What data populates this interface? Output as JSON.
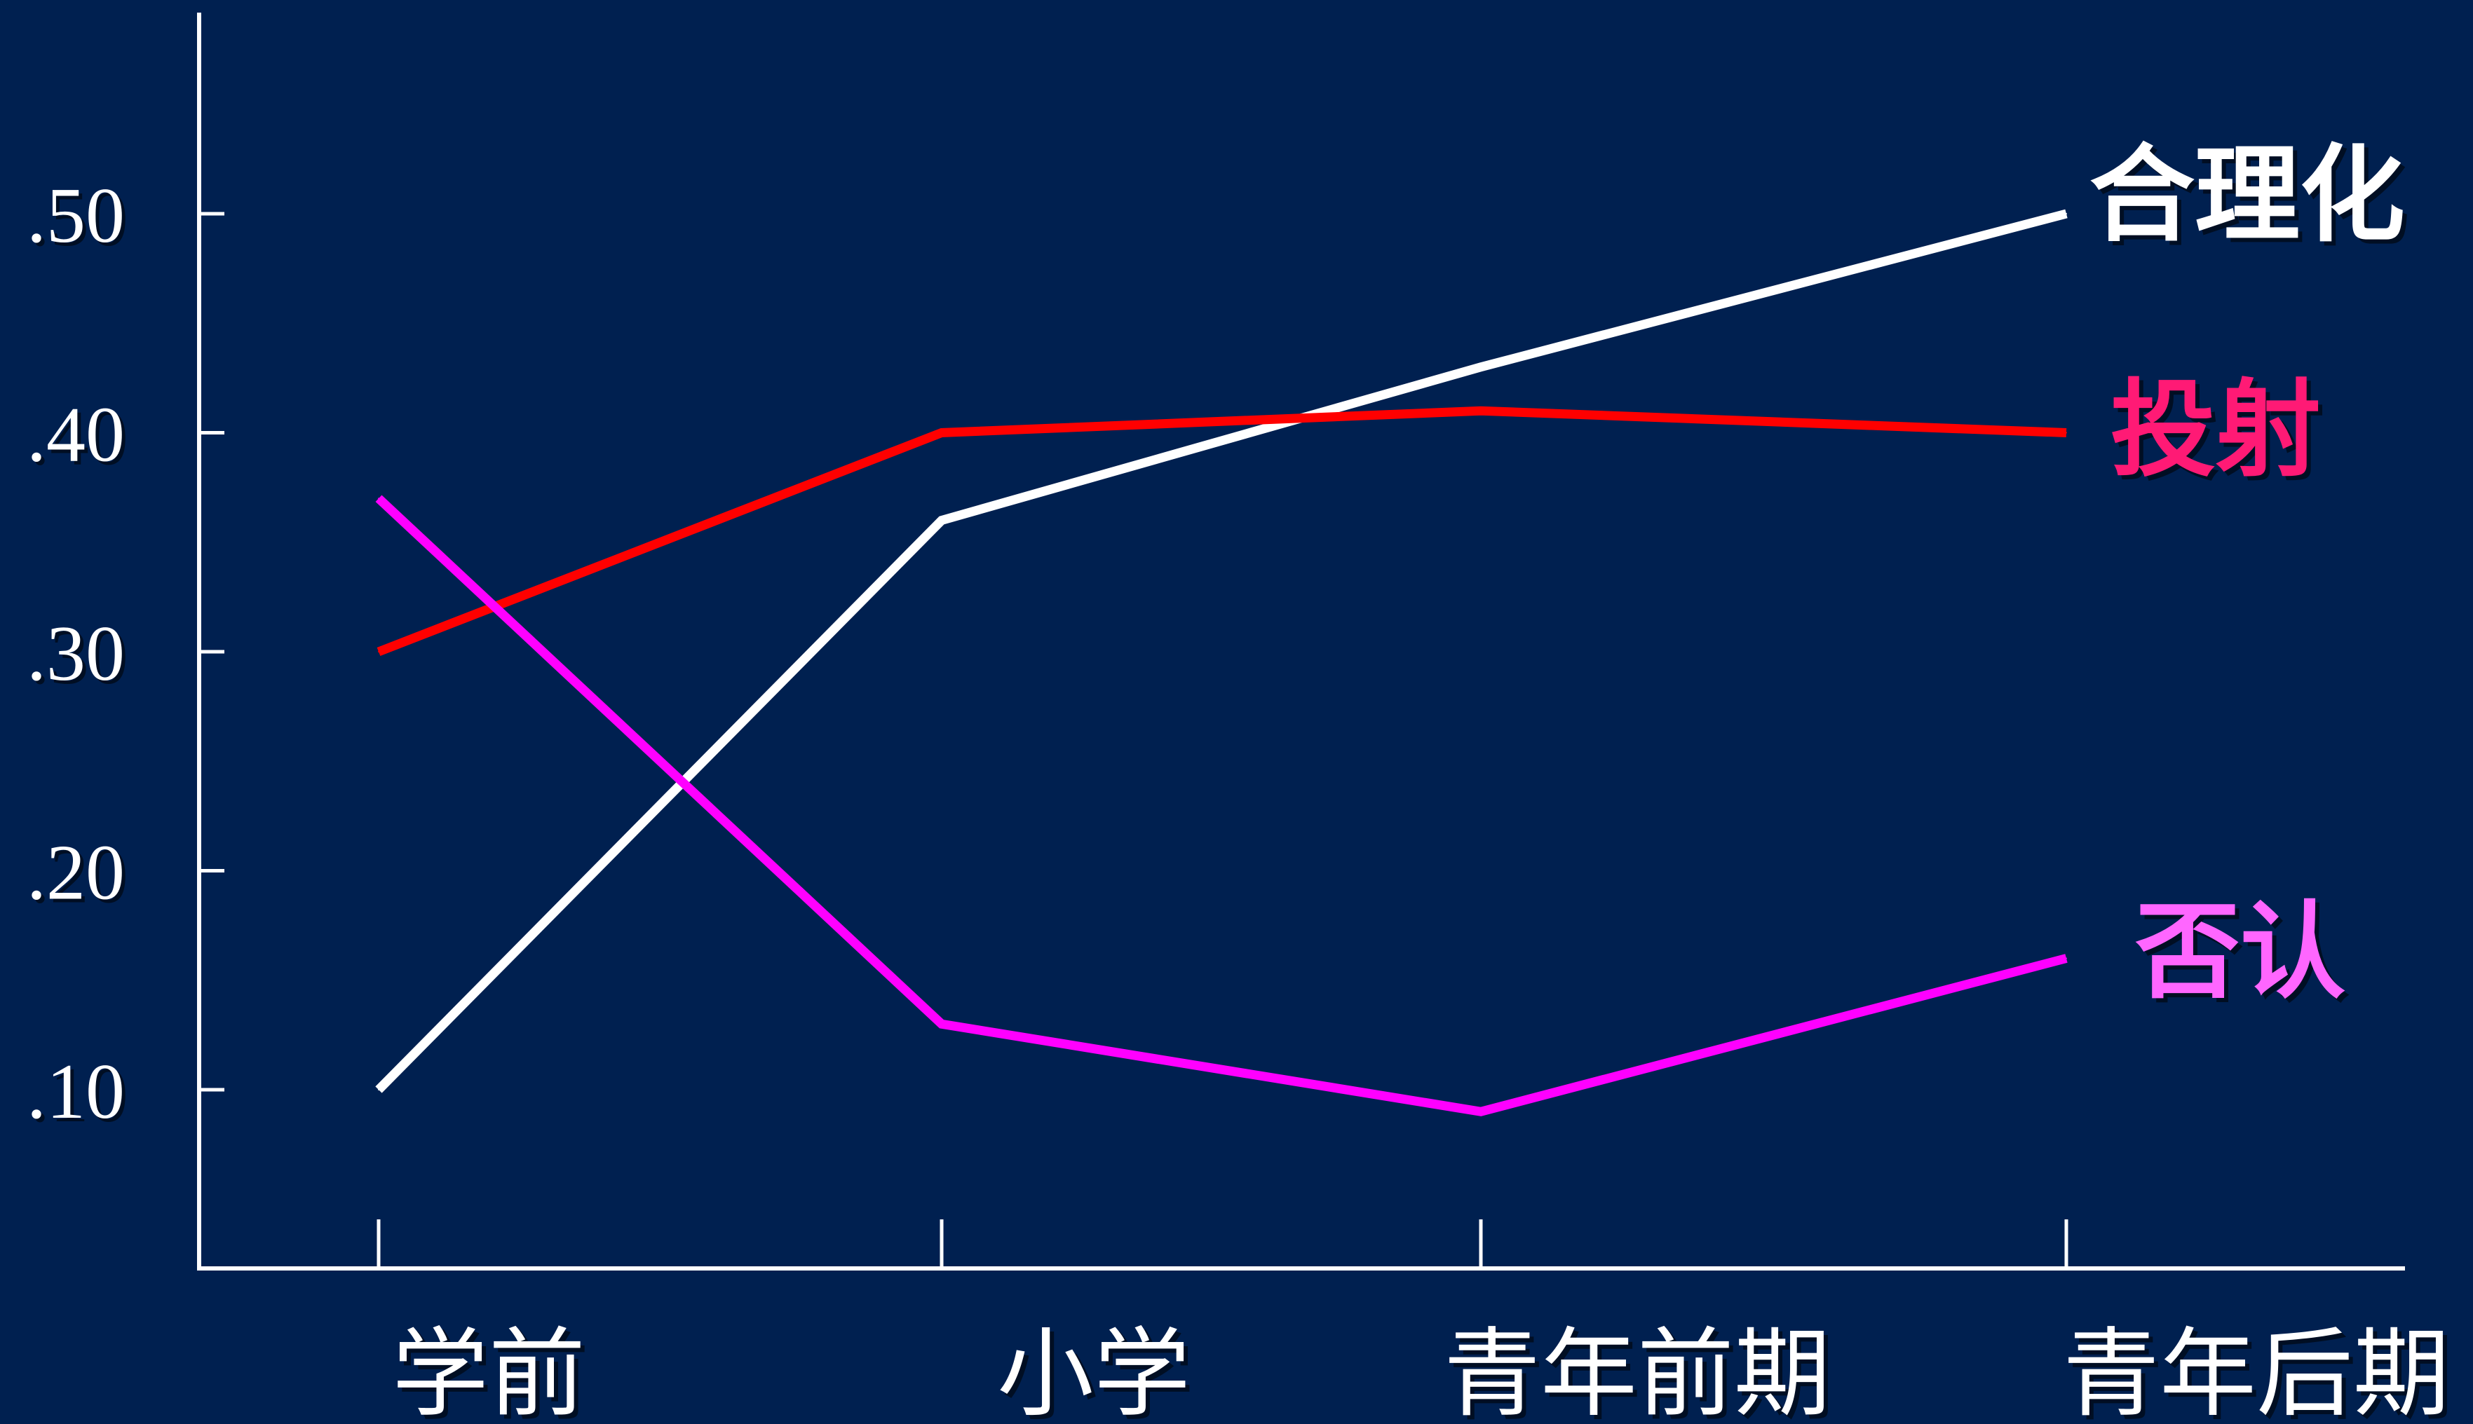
{
  "chart_data": {
    "type": "line",
    "title": "",
    "xlabel": "",
    "ylabel": "",
    "categories": [
      "学前",
      "小学",
      "青年前期",
      "青年后期"
    ],
    "ylim": [
      0.02,
      0.59
    ],
    "yticks": [
      0.1,
      0.2,
      0.3,
      0.4,
      0.5
    ],
    "ytick_labels": [
      ".10",
      ".20",
      ".30",
      ".40",
      ".50"
    ],
    "grid": false,
    "legend": "inline labels at right end of lines",
    "background": "#002050",
    "series": [
      {
        "name": "合理化",
        "values": [
          0.1,
          0.36,
          0.43,
          0.5
        ],
        "color": "#ffffff",
        "label_color": "#ffffff"
      },
      {
        "name": "投射",
        "values": [
          0.3,
          0.4,
          0.41,
          0.4
        ],
        "color": "#ff0000",
        "label_color": "#ff1a75"
      },
      {
        "name": "否认",
        "values": [
          0.37,
          0.13,
          0.09,
          0.16
        ],
        "color": "#ff00ff",
        "label_color": "#ff66ff"
      }
    ]
  }
}
